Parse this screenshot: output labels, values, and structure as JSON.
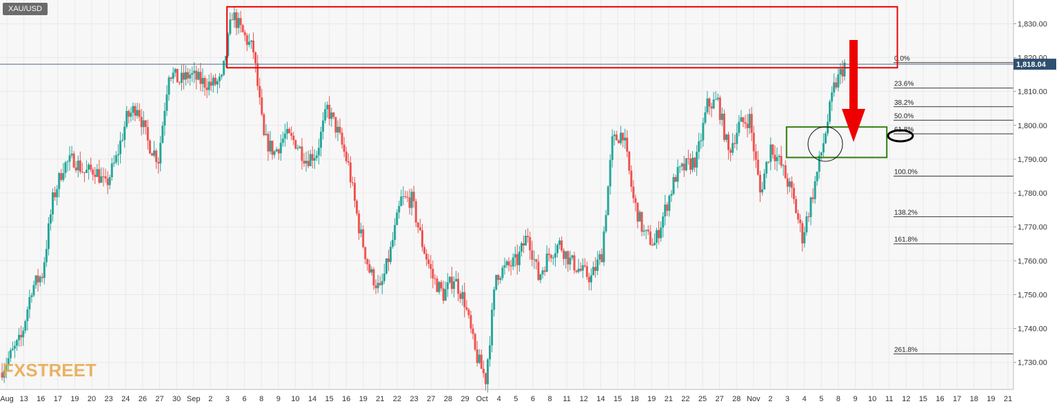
{
  "symbol": "XAU/USD",
  "watermark": "FXSTREET",
  "colors": {
    "up": "#26a69a",
    "down": "#ef5350",
    "resistance_box": "#ee0000",
    "support_box": "#2e7d0f",
    "arrow": "#ee0000",
    "price_tag_bg": "#2f4f6f",
    "grid": "#e9e9e9",
    "plot_bg": "#f7f7f7"
  },
  "chart_data": {
    "type": "candlestick",
    "title": "",
    "instrument": "XAU/USD",
    "y_range": [
      1722,
      1837
    ],
    "y_ticks": [
      1730,
      1740,
      1750,
      1760,
      1770,
      1780,
      1790,
      1800,
      1810,
      1820,
      1830
    ],
    "y_tick_labels": [
      "1,730.00",
      "1,740.00",
      "1,750.00",
      "1,760.00",
      "1,770.00",
      "1,780.00",
      "1,790.00",
      "1,800.00",
      "1,810.00",
      "1,820.00",
      "1,830.00"
    ],
    "x_labels": [
      "Aug",
      "13",
      "16",
      "17",
      "19",
      "20",
      "23",
      "24",
      "26",
      "27",
      "30",
      "Sep",
      "2",
      "3",
      "6",
      "8",
      "9",
      "10",
      "14",
      "15",
      "16",
      "19",
      "21",
      "22",
      "23",
      "27",
      "28",
      "29",
      "Oct",
      "4",
      "5",
      "6",
      "8",
      "11",
      "12",
      "14",
      "15",
      "18",
      "19",
      "21",
      "22",
      "25",
      "27",
      "28",
      "Nov",
      "2",
      "3",
      "4",
      "5",
      "8",
      "9",
      "10",
      "11",
      "12",
      "15",
      "16",
      "17",
      "18",
      "19",
      "21"
    ],
    "last_price": 1818.04,
    "last_price_label": "1,818.04",
    "price_path": [
      {
        "x": 0,
        "y": 1727
      },
      {
        "x": 2,
        "y": 1737
      },
      {
        "x": 3,
        "y": 1752
      },
      {
        "x": 4,
        "y": 1756
      },
      {
        "x": 5,
        "y": 1778
      },
      {
        "x": 6,
        "y": 1788
      },
      {
        "x": 7,
        "y": 1790
      },
      {
        "x": 8,
        "y": 1786
      },
      {
        "x": 9,
        "y": 1787
      },
      {
        "x": 10,
        "y": 1782
      },
      {
        "x": 11,
        "y": 1790
      },
      {
        "x": 12,
        "y": 1802
      },
      {
        "x": 13,
        "y": 1806
      },
      {
        "x": 14,
        "y": 1795
      },
      {
        "x": 15,
        "y": 1790
      },
      {
        "x": 16,
        "y": 1816
      },
      {
        "x": 17,
        "y": 1813
      },
      {
        "x": 18,
        "y": 1815
      },
      {
        "x": 19,
        "y": 1813
      },
      {
        "x": 20,
        "y": 1812
      },
      {
        "x": 21,
        "y": 1813
      },
      {
        "x": 22,
        "y": 1833
      },
      {
        "x": 23,
        "y": 1827
      },
      {
        "x": 24,
        "y": 1822
      },
      {
        "x": 25,
        "y": 1796
      },
      {
        "x": 26,
        "y": 1792
      },
      {
        "x": 27,
        "y": 1797
      },
      {
        "x": 28,
        "y": 1795
      },
      {
        "x": 29,
        "y": 1790
      },
      {
        "x": 30,
        "y": 1792
      },
      {
        "x": 31,
        "y": 1805
      },
      {
        "x": 32,
        "y": 1798
      },
      {
        "x": 33,
        "y": 1788
      },
      {
        "x": 34,
        "y": 1770
      },
      {
        "x": 35,
        "y": 1757
      },
      {
        "x": 36,
        "y": 1751
      },
      {
        "x": 37,
        "y": 1763
      },
      {
        "x": 38,
        "y": 1778
      },
      {
        "x": 39,
        "y": 1778
      },
      {
        "x": 40,
        "y": 1765
      },
      {
        "x": 41,
        "y": 1755
      },
      {
        "x": 42,
        "y": 1750
      },
      {
        "x": 43,
        "y": 1755
      },
      {
        "x": 44,
        "y": 1748
      },
      {
        "x": 45,
        "y": 1733
      },
      {
        "x": 46,
        "y": 1725
      },
      {
        "x": 47,
        "y": 1756
      },
      {
        "x": 48,
        "y": 1758
      },
      {
        "x": 49,
        "y": 1760
      },
      {
        "x": 50,
        "y": 1768
      },
      {
        "x": 51,
        "y": 1755
      },
      {
        "x": 52,
        "y": 1762
      },
      {
        "x": 53,
        "y": 1765
      },
      {
        "x": 54,
        "y": 1760
      },
      {
        "x": 55,
        "y": 1757
      },
      {
        "x": 56,
        "y": 1755
      },
      {
        "x": 57,
        "y": 1762
      },
      {
        "x": 58,
        "y": 1795
      },
      {
        "x": 59,
        "y": 1798
      },
      {
        "x": 60,
        "y": 1778
      },
      {
        "x": 61,
        "y": 1768
      },
      {
        "x": 62,
        "y": 1765
      },
      {
        "x": 63,
        "y": 1775
      },
      {
        "x": 64,
        "y": 1785
      },
      {
        "x": 65,
        "y": 1788
      },
      {
        "x": 66,
        "y": 1790
      },
      {
        "x": 67,
        "y": 1806
      },
      {
        "x": 68,
        "y": 1807
      },
      {
        "x": 69,
        "y": 1792
      },
      {
        "x": 70,
        "y": 1800
      },
      {
        "x": 71,
        "y": 1802
      },
      {
        "x": 72,
        "y": 1780
      },
      {
        "x": 73,
        "y": 1794
      },
      {
        "x": 74,
        "y": 1788
      },
      {
        "x": 75,
        "y": 1780
      },
      {
        "x": 76,
        "y": 1767
      },
      {
        "x": 77,
        "y": 1780
      },
      {
        "x": 78,
        "y": 1795
      },
      {
        "x": 79,
        "y": 1811
      },
      {
        "x": 80,
        "y": 1818
      }
    ],
    "x_extent": [
      0,
      96
    ],
    "fib_levels": [
      {
        "label": "0.0%",
        "value": 1818.5
      },
      {
        "label": "23.6%",
        "value": 1811
      },
      {
        "label": "38.2%",
        "value": 1805.5
      },
      {
        "label": "50.0%",
        "value": 1801.5
      },
      {
        "label": "61.8%",
        "value": 1797.5
      },
      {
        "label": "100.0%",
        "value": 1785
      },
      {
        "label": "138.2%",
        "value": 1773
      },
      {
        "label": "161.8%",
        "value": 1765
      },
      {
        "label": "261.8%",
        "value": 1732.5
      }
    ],
    "resistance_zone": {
      "x_from": 21.5,
      "x_to": 85,
      "y_low": 1817,
      "y_high": 1835
    },
    "support_zone": {
      "x_from": 74.5,
      "x_to": 84,
      "y_low": 1790.5,
      "y_high": 1799.5
    }
  }
}
